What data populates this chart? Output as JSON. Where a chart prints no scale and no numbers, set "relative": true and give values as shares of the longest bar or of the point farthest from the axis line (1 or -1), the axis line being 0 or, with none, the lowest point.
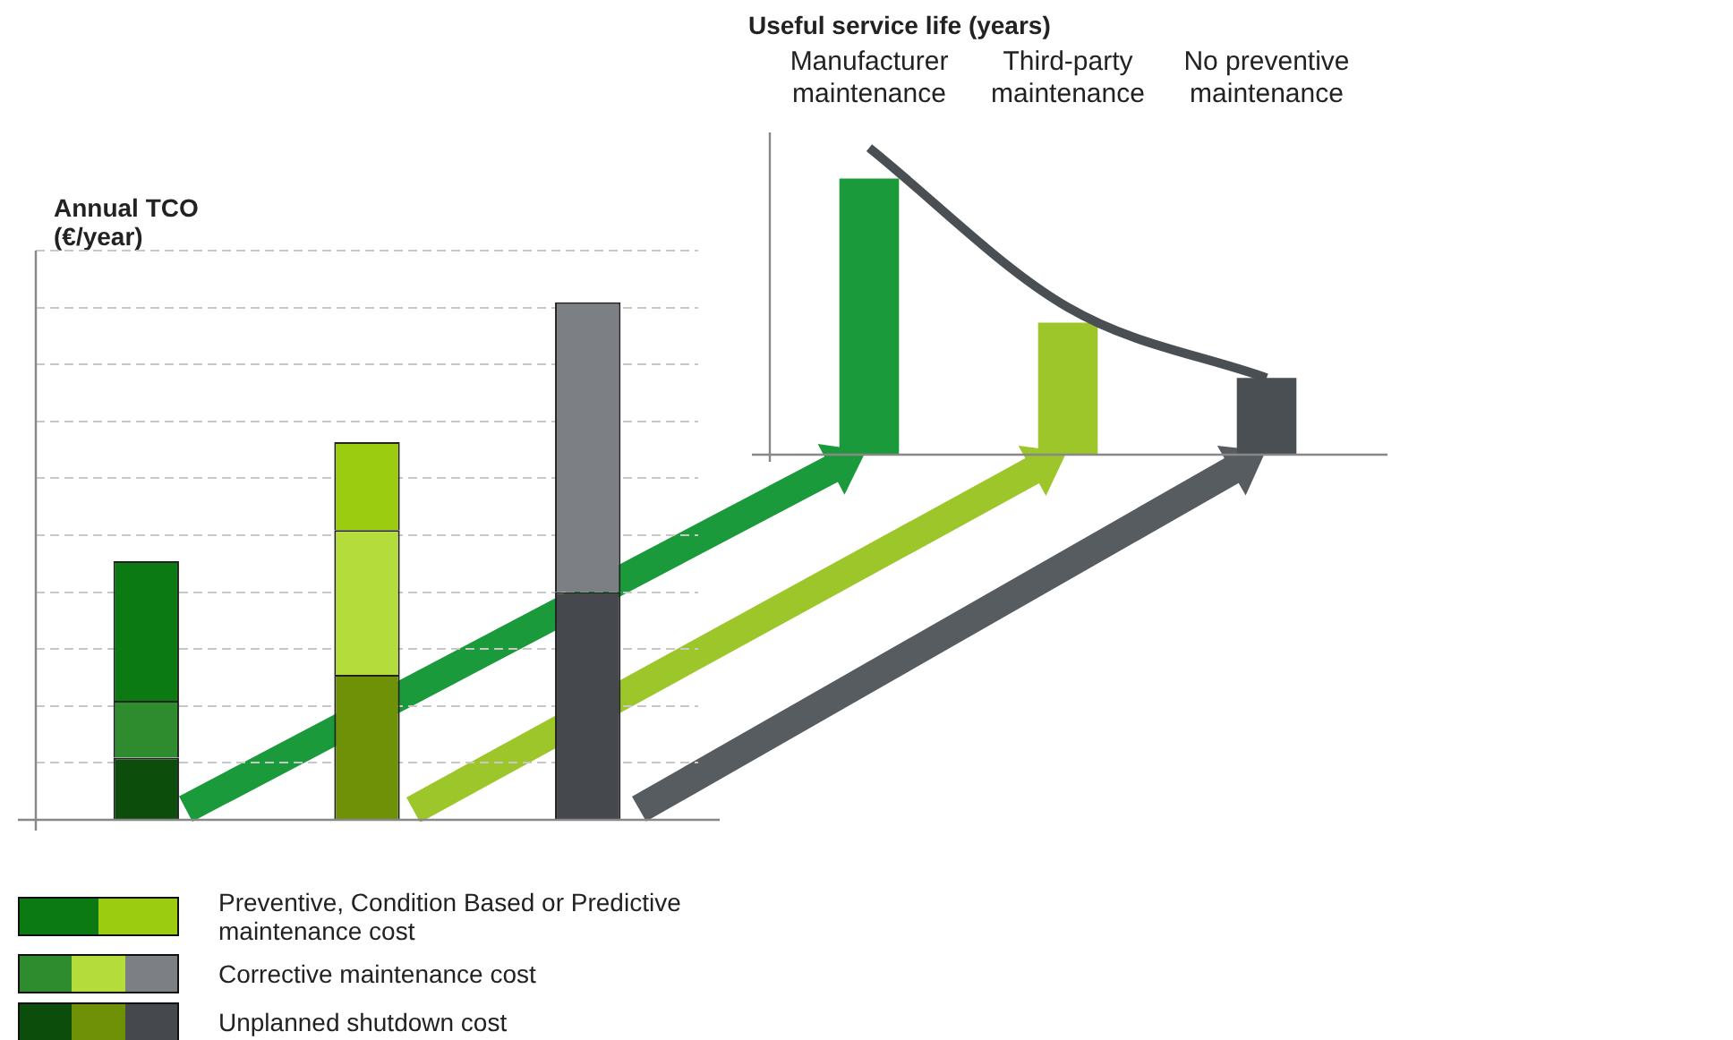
{
  "chart_data": [
    {
      "type": "bar",
      "ylabel": "Annual TCO (€/year)",
      "categories": [
        null,
        null,
        null
      ],
      "stacked": true,
      "relative": true,
      "grid": "y",
      "legend": "bottom",
      "series": [
        {
          "name": "Unplanned shutdown cost",
          "colors": [
            "#0c4d0c",
            "#6e9108",
            "#45484c"
          ],
          "values": [
            0.12,
            0.28,
            0.44
          ]
        },
        {
          "name": "Corrective maintenance cost",
          "colors": [
            "#2e8b2e",
            "#b4dd3c",
            "#7c7f84"
          ],
          "values": [
            0.11,
            0.28,
            0.56
          ]
        },
        {
          "name": "Preventive, Condition Based or Predictive maintenance cost",
          "colors": [
            "#0b7a12",
            "#9ccc10",
            "#6b6e72"
          ],
          "values": [
            0.27,
            0.17,
            0
          ]
        }
      ]
    },
    {
      "type": "bar",
      "ylabel": "Useful service life (years)",
      "categories": [
        "Manufacturer maintenance",
        "Third-party maintenance",
        "No preventive maintenance"
      ],
      "relative": true,
      "series": [
        {
          "colors": [
            "#1a9a3a",
            "#9cc62a",
            "#4a4f54"
          ],
          "values": [
            0.9,
            0.43,
            0.25
          ]
        },
        {
          "type": "line",
          "color": "#4a4f54",
          "values": [
            1,
            0.48,
            0.25
          ]
        }
      ]
    }
  ]
}
